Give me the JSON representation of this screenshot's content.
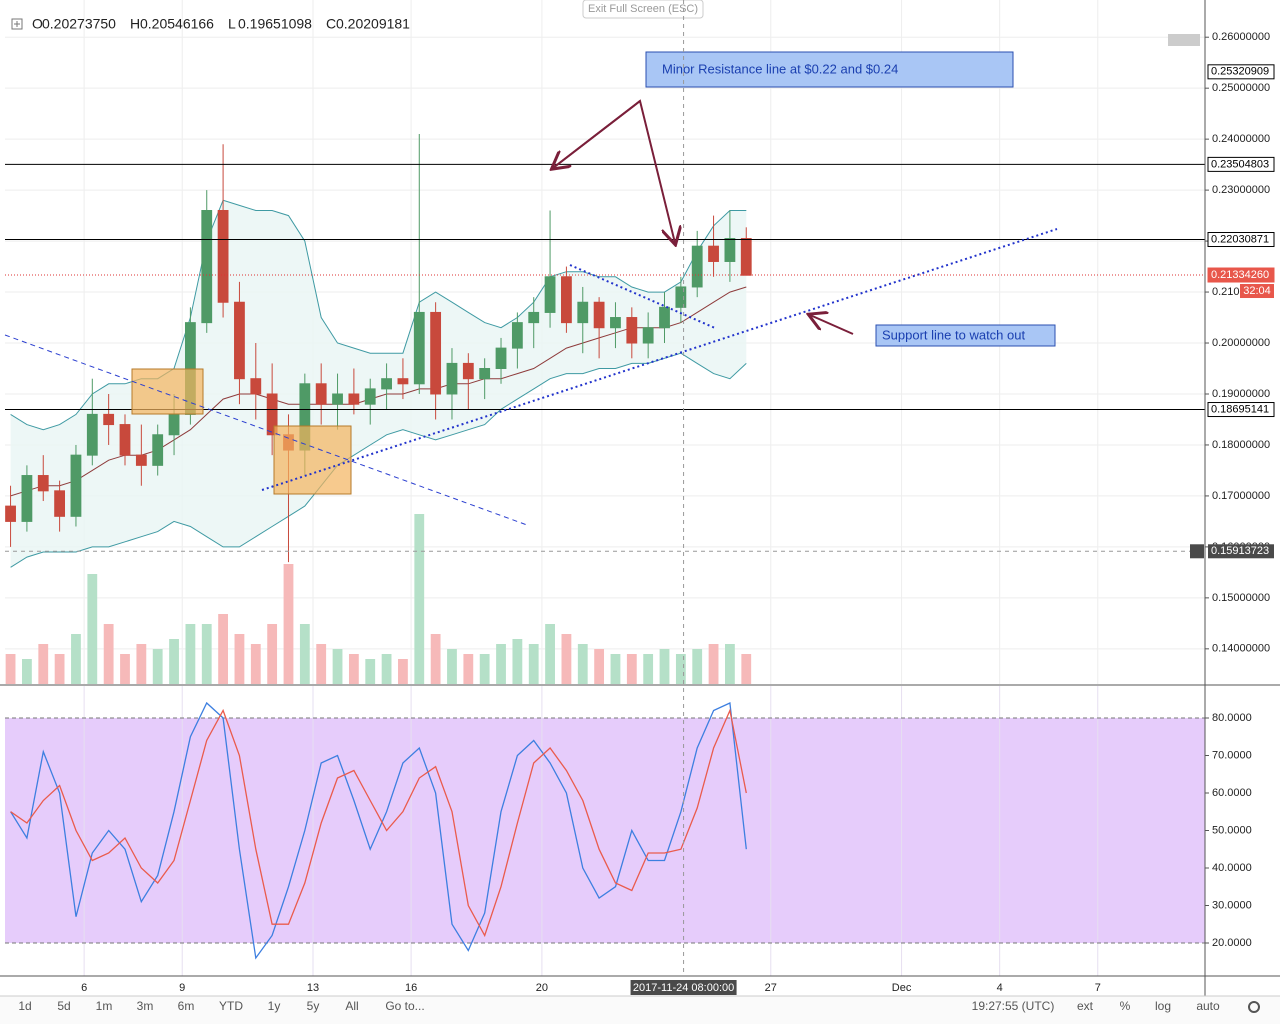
{
  "header": {
    "ohlc": [
      {
        "label": "O",
        "value": "0.20273750"
      },
      {
        "label": "H",
        "value": "0.20546166"
      },
      {
        "label": "L",
        "value": "0.19651098"
      },
      {
        "label": "C",
        "value": "0.20209181"
      }
    ],
    "exit": "Exit Full Screen (ESC)"
  },
  "toolbar": {
    "ranges": [
      "1d",
      "5d",
      "1m",
      "3m",
      "6m",
      "YTD",
      "1y",
      "5y",
      "All",
      "Go to..."
    ],
    "clock": "19:27:55 (UTC)",
    "options": [
      "ext",
      "%",
      "log",
      "auto"
    ]
  },
  "chart_data": [
    {
      "type": "candlestick",
      "x": [
        3.75,
        4.25,
        4.75,
        5.25,
        5.75,
        6.25,
        6.75,
        7.25,
        7.75,
        8.25,
        8.75,
        9.25,
        9.75,
        10.25,
        10.75,
        11.25,
        11.75,
        12.25,
        12.75,
        13.25,
        13.75,
        14.25,
        14.75,
        15.25,
        15.75,
        16.25,
        16.75,
        17.25,
        17.75,
        18.25,
        18.75,
        19.25,
        19.75,
        20.25,
        20.75,
        21.25,
        21.75,
        22.25,
        22.75,
        23.25,
        23.75,
        24.25,
        24.75,
        25.25,
        25.75,
        26.25
      ],
      "open": [
        0.168,
        0.165,
        0.174,
        0.171,
        0.166,
        0.178,
        0.186,
        0.184,
        0.178,
        0.176,
        0.182,
        0.186,
        0.204,
        0.226,
        0.208,
        0.193,
        0.19,
        0.182,
        0.179,
        0.192,
        0.188,
        0.19,
        0.188,
        0.191,
        0.193,
        0.192,
        0.206,
        0.19,
        0.196,
        0.193,
        0.195,
        0.199,
        0.204,
        0.206,
        0.213,
        0.204,
        0.208,
        0.203,
        0.205,
        0.2,
        0.203,
        0.207,
        0.211,
        0.219,
        0.216,
        0.2205
      ],
      "high": [
        0.172,
        0.176,
        0.178,
        0.173,
        0.18,
        0.193,
        0.19,
        0.186,
        0.184,
        0.184,
        0.19,
        0.207,
        0.23,
        0.239,
        0.212,
        0.2,
        0.196,
        0.186,
        0.194,
        0.196,
        0.194,
        0.195,
        0.193,
        0.196,
        0.197,
        0.241,
        0.208,
        0.199,
        0.198,
        0.197,
        0.201,
        0.206,
        0.209,
        0.226,
        0.215,
        0.211,
        0.209,
        0.208,
        0.207,
        0.206,
        0.21,
        0.213,
        0.222,
        0.225,
        0.226,
        0.2227
      ],
      "low": [
        0.16,
        0.163,
        0.169,
        0.163,
        0.164,
        0.176,
        0.18,
        0.176,
        0.172,
        0.174,
        0.178,
        0.184,
        0.202,
        0.205,
        0.188,
        0.185,
        0.178,
        0.157,
        0.174,
        0.184,
        0.183,
        0.186,
        0.184,
        0.187,
        0.189,
        0.19,
        0.185,
        0.185,
        0.187,
        0.189,
        0.192,
        0.195,
        0.199,
        0.203,
        0.202,
        0.198,
        0.197,
        0.199,
        0.197,
        0.197,
        0.2,
        0.204,
        0.209,
        0.213,
        0.212,
        0.2133
      ],
      "close": [
        0.165,
        0.174,
        0.171,
        0.166,
        0.178,
        0.186,
        0.184,
        0.178,
        0.176,
        0.182,
        0.186,
        0.204,
        0.226,
        0.208,
        0.193,
        0.19,
        0.182,
        0.179,
        0.192,
        0.188,
        0.19,
        0.188,
        0.191,
        0.193,
        0.192,
        0.206,
        0.19,
        0.196,
        0.193,
        0.195,
        0.199,
        0.204,
        0.206,
        0.213,
        0.204,
        0.208,
        0.203,
        0.205,
        0.2,
        0.203,
        0.207,
        0.211,
        0.219,
        0.216,
        0.2205,
        0.2133
      ],
      "volume": [
        30,
        25,
        40,
        30,
        50,
        110,
        60,
        30,
        40,
        35,
        45,
        60,
        60,
        70,
        50,
        40,
        60,
        120,
        60,
        40,
        35,
        30,
        25,
        30,
        25,
        170,
        50,
        35,
        30,
        30,
        40,
        45,
        40,
        60,
        50,
        40,
        35,
        30,
        30,
        30,
        35,
        30,
        35,
        40,
        40,
        30
      ],
      "up_color": "#4f9a66",
      "down_color": "#c8493c",
      "up_volume_color": "#b5e0c8",
      "down_volume_color": "#f6b9b9",
      "bands": {
        "upper": [
          0.186,
          0.184,
          0.183,
          0.184,
          0.186,
          0.19,
          0.192,
          0.192,
          0.193,
          0.193,
          0.195,
          0.205,
          0.22,
          0.228,
          0.227,
          0.226,
          0.226,
          0.225,
          0.22,
          0.205,
          0.2,
          0.199,
          0.198,
          0.198,
          0.198,
          0.208,
          0.21,
          0.208,
          0.206,
          0.204,
          0.203,
          0.205,
          0.208,
          0.213,
          0.214,
          0.214,
          0.213,
          0.213,
          0.211,
          0.21,
          0.21,
          0.212,
          0.218,
          0.223,
          0.226,
          0.226
        ],
        "basis": [
          0.17,
          0.171,
          0.172,
          0.172,
          0.173,
          0.175,
          0.177,
          0.178,
          0.178,
          0.179,
          0.181,
          0.183,
          0.186,
          0.189,
          0.19,
          0.19,
          0.189,
          0.188,
          0.188,
          0.188,
          0.188,
          0.188,
          0.189,
          0.19,
          0.19,
          0.191,
          0.191,
          0.192,
          0.192,
          0.193,
          0.193,
          0.194,
          0.195,
          0.197,
          0.199,
          0.2,
          0.201,
          0.202,
          0.203,
          0.203,
          0.203,
          0.204,
          0.206,
          0.208,
          0.21,
          0.211
        ],
        "lower": [
          0.156,
          0.158,
          0.159,
          0.159,
          0.159,
          0.16,
          0.16,
          0.161,
          0.162,
          0.163,
          0.165,
          0.164,
          0.162,
          0.16,
          0.16,
          0.162,
          0.164,
          0.166,
          0.168,
          0.172,
          0.176,
          0.178,
          0.18,
          0.182,
          0.183,
          0.182,
          0.181,
          0.182,
          0.183,
          0.184,
          0.187,
          0.189,
          0.191,
          0.193,
          0.194,
          0.194,
          0.195,
          0.195,
          0.196,
          0.196,
          0.197,
          0.198,
          0.196,
          0.194,
          0.193,
          0.196
        ],
        "band_color": "#3f9aa3",
        "basis_color": "#8e3b3b",
        "fill_color": "#e9f5f4"
      },
      "xlim": [
        3.58,
        40.28
      ],
      "xticks": [
        6,
        9,
        13,
        16,
        20,
        27,
        {
          "value": 31,
          "label": "Dec"
        },
        {
          "value": 34,
          "label": "4"
        },
        {
          "value": 37,
          "label": "7"
        }
      ],
      "ylim": [
        0.1331,
        0.2673
      ],
      "yticks": [
        {
          "value": 0.14,
          "label": "0.14000000"
        },
        {
          "value": 0.15,
          "label": "0.15000000"
        },
        {
          "value": 0.16,
          "label": "0.16000000"
        },
        {
          "value": 0.17,
          "label": "0.17000000"
        },
        {
          "value": 0.18,
          "label": "0.18000000"
        },
        {
          "value": 0.19,
          "label": "0.19000000"
        },
        {
          "value": 0.2,
          "label": "0.20000000"
        },
        {
          "value": 0.21,
          "label": "0.21000000"
        },
        {
          "value": 0.22,
          "label": "0.22000000"
        },
        {
          "value": 0.23,
          "label": "0.23000000"
        },
        {
          "value": 0.24,
          "label": "0.24000000"
        },
        {
          "value": 0.25,
          "label": "0.25000000"
        },
        {
          "value": 0.26,
          "label": "0.26000000"
        }
      ],
      "grid": true,
      "price_lines": [
        {
          "value": 0.25320909,
          "label": "0.25320909",
          "style": "label"
        },
        {
          "value": 0.23504803,
          "label": "0.23504803",
          "style": "line"
        },
        {
          "value": 0.22030871,
          "label": "0.22030871",
          "style": "line"
        },
        {
          "value": 0.2133426,
          "label": "0.21334260",
          "style": "current"
        },
        {
          "value": 0.18695141,
          "label": "0.18695141",
          "style": "line"
        }
      ],
      "countdown": "32:04",
      "crosshair": {
        "x": 24.333,
        "x_label": "2017-11-24 08:00:00",
        "y": 0.15913723
      },
      "annotations": [
        "Minor Resistance  line at $0.22 and $0.24",
        "Support line to watch out"
      ]
    },
    {
      "type": "line",
      "x": [
        3.75,
        4.25,
        4.75,
        5.25,
        5.75,
        6.25,
        6.75,
        7.25,
        7.75,
        8.25,
        8.75,
        9.25,
        9.75,
        10.25,
        10.75,
        11.25,
        11.75,
        12.25,
        12.75,
        13.25,
        13.75,
        14.25,
        14.75,
        15.25,
        15.75,
        16.25,
        16.75,
        17.25,
        17.75,
        18.25,
        18.75,
        19.25,
        19.75,
        20.25,
        20.75,
        21.25,
        21.75,
        22.25,
        22.75,
        23.25,
        23.75,
        24.25,
        24.75,
        25.25,
        25.75,
        26.25
      ],
      "series": [
        {
          "color": "#3d7fe0",
          "values": [
            55,
            48,
            71,
            60,
            27,
            44,
            50,
            45,
            31,
            38,
            55,
            75,
            84,
            80,
            45,
            16,
            22,
            35,
            50,
            68,
            70,
            58,
            45,
            55,
            68,
            72,
            60,
            25,
            18,
            28,
            55,
            70,
            74,
            68,
            60,
            40,
            32,
            35,
            50,
            42,
            42,
            55,
            72,
            82,
            84,
            45
          ]
        },
        {
          "color": "#ea5b4c",
          "values": [
            55,
            52,
            58,
            62,
            50,
            42,
            44,
            48,
            40,
            36,
            42,
            58,
            74,
            82,
            70,
            45,
            25,
            25,
            36,
            52,
            64,
            66,
            58,
            50,
            55,
            64,
            67,
            55,
            30,
            22,
            35,
            52,
            68,
            72,
            66,
            58,
            45,
            36,
            34,
            44,
            44,
            45,
            56,
            72,
            82,
            60
          ]
        }
      ],
      "levels": [
        20,
        80
      ],
      "level_fill": "#e6ccfb",
      "ylim": [
        11.2,
        88.53
      ],
      "yticks": [
        {
          "value": 20,
          "label": "20.0000"
        },
        {
          "value": 30,
          "label": "30.0000"
        },
        {
          "value": 40,
          "label": "40.0000"
        },
        {
          "value": 50,
          "label": "50.0000"
        },
        {
          "value": 60,
          "label": "60.0000"
        },
        {
          "value": 70,
          "label": "70.0000"
        },
        {
          "value": 80,
          "label": "80.0000"
        }
      ]
    }
  ]
}
